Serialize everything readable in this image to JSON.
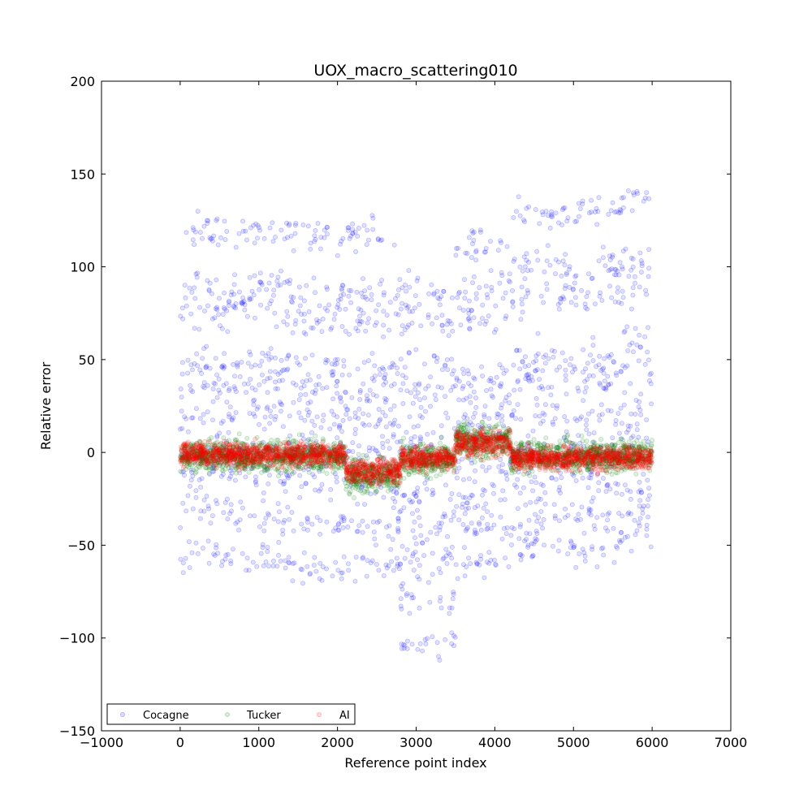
{
  "chart_data": {
    "type": "scatter",
    "title": "UOX_macro_scattering010",
    "xlabel": "Reference point index",
    "ylabel": "Relative error",
    "xlim": [
      -1000,
      7000
    ],
    "ylim": [
      -150,
      200
    ],
    "xticks": [
      -1000,
      0,
      1000,
      2000,
      3000,
      4000,
      5000,
      6000,
      7000
    ],
    "yticks": [
      -150,
      -100,
      -50,
      0,
      50,
      100,
      150,
      200
    ],
    "xtick_labels": [
      "−1000",
      "0",
      "1000",
      "2000",
      "3000",
      "4000",
      "5000",
      "6000",
      "7000"
    ],
    "ytick_labels": [
      "−150",
      "−100",
      "−50",
      "0",
      "50",
      "100",
      "150",
      "200"
    ],
    "grid": false,
    "legend_position": "lower-left",
    "series": [
      {
        "name": "Cocagne",
        "color": "#0000ff",
        "opacity": 0.12,
        "segments": [
          {
            "x": [
              0,
              700
            ],
            "levels": [
              118,
              88,
              75,
              48,
              35,
              20,
              0,
              -10,
              -30,
              -55
            ],
            "spread": 6
          },
          {
            "x": [
              700,
              1400
            ],
            "levels": [
              120,
              90,
              78,
              50,
              38,
              22,
              0,
              -12,
              -35,
              -58
            ],
            "spread": 6
          },
          {
            "x": [
              1400,
              2100
            ],
            "levels": [
              115,
              85,
              70,
              45,
              33,
              18,
              0,
              -15,
              -38,
              -62
            ],
            "spread": 6
          },
          {
            "x": [
              2100,
              2800
            ],
            "levels": [
              118,
              85,
              72,
              45,
              30,
              18,
              0,
              -20,
              -40,
              -60
            ],
            "spread": 6
          },
          {
            "x": [
              2800,
              3500
            ],
            "levels": [
              85,
              70,
              45,
              30,
              10,
              -25,
              -40,
              -55,
              -75,
              -105
            ],
            "spread": 8
          },
          {
            "x": [
              3500,
              4200
            ],
            "levels": [
              112,
              88,
              75,
              40,
              30,
              15,
              -10,
              -25,
              -40,
              -60
            ],
            "spread": 6
          },
          {
            "x": [
              4200,
              4900
            ],
            "levels": [
              128,
              100,
              85,
              50,
              38,
              20,
              0,
              -15,
              -35,
              -50
            ],
            "spread": 6
          },
          {
            "x": [
              4900,
              5600
            ],
            "levels": [
              130,
              100,
              85,
              50,
              38,
              18,
              0,
              -15,
              -35,
              -52
            ],
            "spread": 6
          },
          {
            "x": [
              5600,
              6000
            ],
            "levels": [
              138,
              105,
              90,
              60,
              45,
              25,
              8,
              -20,
              -30,
              -42
            ],
            "spread": 6
          }
        ]
      },
      {
        "name": "Tucker",
        "color": "#008000",
        "opacity": 0.12,
        "segments": [
          {
            "x": [
              0,
              2100
            ],
            "center": -2,
            "spread": 8
          },
          {
            "x": [
              2100,
              2800
            ],
            "center": -12,
            "spread": 9
          },
          {
            "x": [
              2800,
              3500
            ],
            "center": -4,
            "spread": 8
          },
          {
            "x": [
              3500,
              4200
            ],
            "center": 6,
            "spread": 9
          },
          {
            "x": [
              4200,
              6000
            ],
            "center": -2,
            "spread": 8
          }
        ]
      },
      {
        "name": "AI",
        "color": "#ff0000",
        "opacity": 0.12,
        "segments": [
          {
            "x": [
              0,
              2100
            ],
            "center": -1,
            "spread": 6
          },
          {
            "x": [
              2100,
              2800
            ],
            "center": -10,
            "spread": 7
          },
          {
            "x": [
              2800,
              3500
            ],
            "center": -3,
            "spread": 6
          },
          {
            "x": [
              3500,
              4200
            ],
            "center": 5,
            "spread": 7
          },
          {
            "x": [
              4200,
              6000
            ],
            "center": -3,
            "spread": 6
          }
        ]
      }
    ]
  }
}
